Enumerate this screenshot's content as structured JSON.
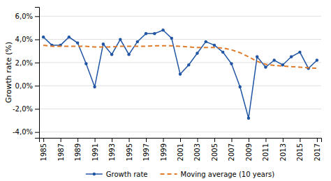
{
  "chart_data": {
    "type": "line",
    "ylabel": "Growth rate (%)",
    "x": [
      1985,
      1986,
      1987,
      1988,
      1989,
      1990,
      1991,
      1992,
      1993,
      1994,
      1995,
      1996,
      1997,
      1998,
      1999,
      2000,
      2001,
      2002,
      2003,
      2004,
      2005,
      2006,
      2007,
      2008,
      2009,
      2010,
      2011,
      2012,
      2013,
      2014,
      2015,
      2016,
      2017
    ],
    "series": [
      {
        "name": "Growth rate",
        "color": "#2055A4",
        "marker": "circle",
        "values": [
          4.2,
          3.5,
          3.5,
          4.2,
          3.7,
          1.9,
          -0.1,
          3.6,
          2.7,
          4.0,
          2.7,
          3.8,
          4.5,
          4.5,
          4.8,
          4.1,
          1.0,
          1.8,
          2.8,
          3.8,
          3.5,
          2.9,
          1.9,
          -0.1,
          -2.8,
          2.5,
          1.6,
          2.2,
          1.8,
          2.5,
          2.9,
          1.5,
          2.2
        ]
      },
      {
        "name": "Moving average (10 years)",
        "color": "#E07B2A",
        "line_style": "dashed",
        "values": [
          3.5,
          3.4,
          3.4,
          3.4,
          3.4,
          3.4,
          3.35,
          3.35,
          3.35,
          3.4,
          3.4,
          3.4,
          3.4,
          3.45,
          3.45,
          3.45,
          3.4,
          3.35,
          3.3,
          3.3,
          3.3,
          3.25,
          3.1,
          2.85,
          2.5,
          2.1,
          1.85,
          1.75,
          1.7,
          1.65,
          1.6,
          1.55,
          1.5
        ]
      }
    ],
    "xlim": [
      1984.5,
      2017.5
    ],
    "xticks": [
      1985,
      1987,
      1989,
      1991,
      1993,
      1995,
      1997,
      1999,
      2001,
      2003,
      2005,
      2007,
      2009,
      2011,
      2013,
      2015,
      2017
    ],
    "ylim": [
      -4.5,
      6.8
    ],
    "yticks": [
      {
        "value": -4.0,
        "label": "-4,0%"
      },
      {
        "value": -2.0,
        "label": "-2,0%"
      },
      {
        "value": 0.0,
        "label": "0,0%"
      },
      {
        "value": 2.0,
        "label": "2,0%"
      },
      {
        "value": 4.0,
        "label": "4,0%"
      },
      {
        "value": 6.0,
        "label": "6,0%"
      }
    ],
    "grid": "y",
    "legend": "bottom"
  }
}
